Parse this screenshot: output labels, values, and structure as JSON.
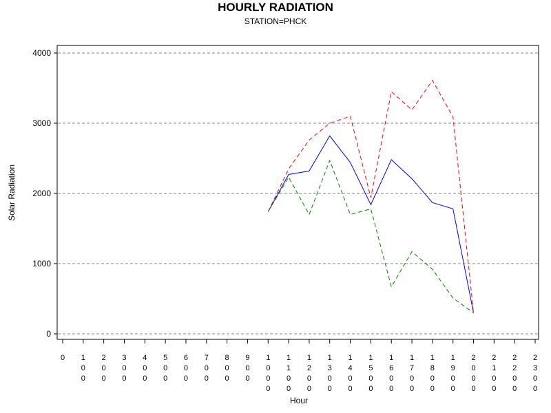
{
  "chart_data": {
    "type": "line",
    "title": "HOURLY RADIATION",
    "subtitle": "STATION=PHCK",
    "xlabel": "Hour",
    "ylabel": "Solar Radiation",
    "ylim": [
      0,
      4000
    ],
    "yticks": [
      0,
      1000,
      2000,
      3000,
      4000
    ],
    "xlim": [
      0,
      2300
    ],
    "xticks": [
      "0",
      "100",
      "200",
      "300",
      "400",
      "500",
      "600",
      "700",
      "800",
      "900",
      "1000",
      "1100",
      "1200",
      "1300",
      "1400",
      "1500",
      "1600",
      "1700",
      "1800",
      "1900",
      "2000",
      "2100",
      "2200",
      "2300"
    ],
    "grid": "horizontal-dashed",
    "series": [
      {
        "color": "#0000ff",
        "dash": "solid",
        "x": [
          1000,
          1100,
          1200,
          1300,
          1400,
          1500,
          1600,
          1700,
          1800,
          1900,
          2000
        ],
        "values": [
          1740,
          2270,
          2320,
          2820,
          2440,
          1840,
          2480,
          2210,
          1870,
          1780,
          300
        ]
      },
      {
        "color": "#ff0000",
        "dash": "dashed",
        "x": [
          1000,
          1100,
          1200,
          1300,
          1400,
          1500,
          1600,
          1700,
          1800,
          1900,
          2000
        ],
        "values": [
          1740,
          2350,
          2760,
          3000,
          3100,
          1940,
          3450,
          3190,
          3610,
          3090,
          300
        ]
      },
      {
        "color": "#008000",
        "dash": "dashed",
        "x": [
          1000,
          1100,
          1200,
          1300,
          1400,
          1500,
          1600,
          1700,
          1800,
          1900,
          2000
        ],
        "values": [
          1740,
          2230,
          1700,
          2470,
          1700,
          1780,
          670,
          1170,
          920,
          510,
          300
        ]
      }
    ]
  }
}
